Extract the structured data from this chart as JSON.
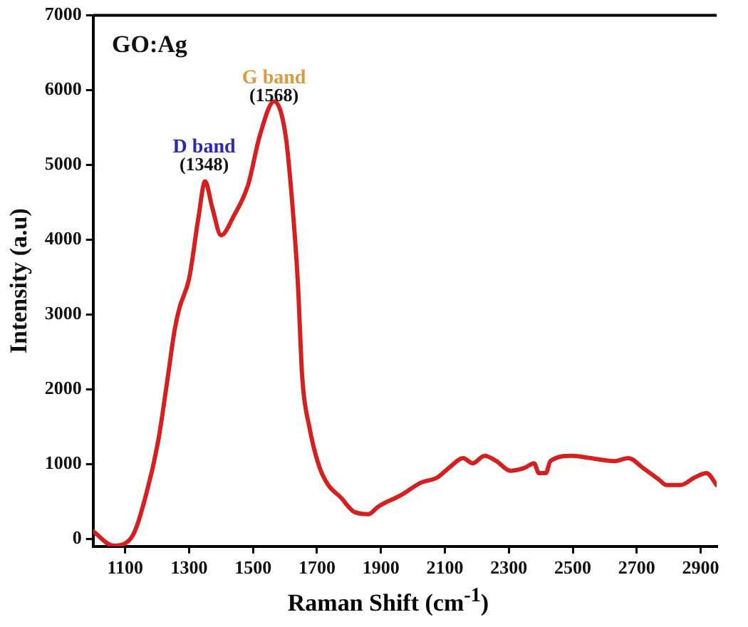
{
  "chart_data": {
    "type": "line",
    "xlabel": "Raman Shift (cm$^{-1}$)",
    "ylabel": "Intensity (a.u)",
    "annotations": [
      "GO:Ag",
      "D band",
      "(1348)",
      "G band",
      "(1568)"
    ],
    "x": [
      1000,
      1063,
      1120,
      1166,
      1203,
      1233,
      1255,
      1270,
      1300,
      1329,
      1350,
      1373,
      1400,
      1440,
      1485,
      1521,
      1566,
      1602,
      1624,
      1640,
      1654,
      1676,
      1706,
      1735,
      1773,
      1817,
      1861,
      1891,
      1965,
      2024,
      2076,
      2113,
      2157,
      2187,
      2224,
      2261,
      2305,
      2349,
      2379,
      2394,
      2416,
      2430,
      2497,
      2556,
      2630,
      2674,
      2719,
      2770,
      2793,
      2837,
      2881,
      2918,
      2950
    ],
    "series": [
      {
        "color": "#d42020",
        "values": [
          100,
          -90,
          20,
          600,
          1300,
          2150,
          2800,
          3090,
          3480,
          4290,
          4780,
          4420,
          4060,
          4320,
          4740,
          5390,
          5850,
          5390,
          4420,
          3440,
          2150,
          1500,
          980,
          720,
          560,
          360,
          330,
          430,
          590,
          750,
          820,
          950,
          1080,
          1010,
          1110,
          1040,
          910,
          950,
          1010,
          880,
          880,
          1040,
          1110,
          1080,
          1040,
          1080,
          950,
          790,
          720,
          720,
          820,
          880,
          720
        ]
      }
    ],
    "xlim": [
      1000,
      2950
    ],
    "xticks": [
      1100,
      1300,
      1500,
      1700,
      1900,
      2100,
      2300,
      2500,
      2700,
      2900
    ],
    "ylim": [
      -100,
      7000
    ],
    "yticks": [
      0,
      1000,
      2000,
      3000,
      4000,
      5000,
      6000,
      7000
    ],
    "grid": false,
    "legend": false,
    "marker": "none",
    "line_style": "solid"
  }
}
